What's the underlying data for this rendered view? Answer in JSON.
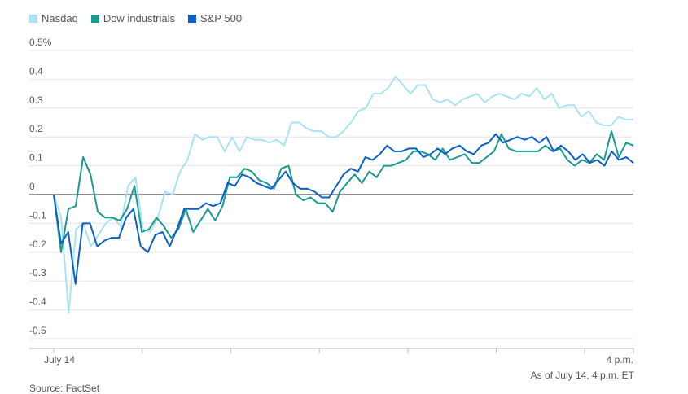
{
  "chart_data": {
    "type": "line",
    "ylim": [
      -0.5,
      0.5
    ],
    "y_ticks": [
      {
        "value": 0.5,
        "label": "0.5%"
      },
      {
        "value": 0.4,
        "label": "0.4"
      },
      {
        "value": 0.3,
        "label": "0.3"
      },
      {
        "value": 0.2,
        "label": "0.2"
      },
      {
        "value": 0.1,
        "label": "0.1"
      },
      {
        "value": 0,
        "label": "0"
      },
      {
        "value": -0.1,
        "label": "-0.1"
      },
      {
        "value": -0.2,
        "label": "-0.2"
      },
      {
        "value": -0.3,
        "label": "-0.3"
      },
      {
        "value": -0.4,
        "label": "-0.4"
      },
      {
        "value": -0.5,
        "label": "-0.5"
      }
    ],
    "x_tick_labels": {
      "start": "July 14",
      "end": "4 p.m."
    },
    "grid": true,
    "legend_position": "top-left",
    "series": [
      {
        "name": "Nasdaq",
        "color": "#a8e2f5",
        "values": [
          0.0,
          -0.08,
          -0.41,
          -0.12,
          -0.1,
          -0.18,
          -0.14,
          -0.1,
          -0.08,
          -0.11,
          0.03,
          0.06,
          -0.12,
          -0.13,
          -0.08,
          0.01,
          0.0,
          0.08,
          0.12,
          0.21,
          0.19,
          0.2,
          0.2,
          0.15,
          0.2,
          0.15,
          0.2,
          0.19,
          0.19,
          0.18,
          0.19,
          0.17,
          0.25,
          0.25,
          0.23,
          0.22,
          0.22,
          0.2,
          0.2,
          0.22,
          0.25,
          0.29,
          0.3,
          0.35,
          0.35,
          0.37,
          0.41,
          0.38,
          0.35,
          0.38,
          0.38,
          0.33,
          0.32,
          0.33,
          0.31,
          0.33,
          0.34,
          0.35,
          0.32,
          0.34,
          0.35,
          0.34,
          0.33,
          0.35,
          0.34,
          0.37,
          0.33,
          0.35,
          0.3,
          0.31,
          0.31,
          0.27,
          0.29,
          0.25,
          0.24,
          0.24,
          0.27,
          0.26,
          0.26
        ]
      },
      {
        "name": "Dow industrials",
        "color": "#1a9a8e",
        "values": [
          0.0,
          -0.2,
          -0.05,
          -0.04,
          0.13,
          0.07,
          -0.06,
          -0.08,
          -0.08,
          -0.09,
          -0.05,
          0.03,
          -0.13,
          -0.12,
          -0.08,
          -0.11,
          -0.15,
          -0.12,
          -0.05,
          -0.13,
          -0.09,
          -0.05,
          -0.09,
          -0.04,
          0.06,
          0.06,
          0.09,
          0.08,
          0.05,
          0.04,
          0.02,
          0.09,
          0.1,
          0.0,
          -0.02,
          -0.01,
          -0.03,
          -0.03,
          -0.06,
          0.01,
          0.04,
          0.07,
          0.04,
          0.08,
          0.06,
          0.1,
          0.1,
          0.11,
          0.12,
          0.15,
          0.15,
          0.14,
          0.12,
          0.16,
          0.12,
          0.13,
          0.14,
          0.11,
          0.11,
          0.13,
          0.15,
          0.21,
          0.16,
          0.15,
          0.15,
          0.15,
          0.15,
          0.17,
          0.15,
          0.16,
          0.12,
          0.1,
          0.12,
          0.11,
          0.14,
          0.12,
          0.22,
          0.13,
          0.18,
          0.17
        ]
      },
      {
        "name": "S&P 500",
        "color": "#0a5fc9",
        "values": [
          0.0,
          -0.17,
          -0.13,
          -0.31,
          -0.1,
          -0.1,
          -0.18,
          -0.16,
          -0.15,
          -0.15,
          -0.08,
          -0.05,
          -0.18,
          -0.2,
          -0.14,
          -0.13,
          -0.18,
          -0.12,
          -0.05,
          -0.05,
          -0.05,
          -0.03,
          -0.04,
          -0.03,
          0.04,
          0.03,
          0.07,
          0.06,
          0.04,
          0.03,
          0.02,
          0.05,
          0.08,
          0.04,
          0.02,
          0.02,
          0.01,
          -0.01,
          -0.01,
          0.03,
          0.07,
          0.09,
          0.08,
          0.13,
          0.12,
          0.14,
          0.17,
          0.15,
          0.15,
          0.16,
          0.16,
          0.13,
          0.14,
          0.16,
          0.14,
          0.16,
          0.17,
          0.15,
          0.14,
          0.17,
          0.18,
          0.21,
          0.18,
          0.19,
          0.2,
          0.19,
          0.2,
          0.18,
          0.2,
          0.15,
          0.17,
          0.15,
          0.12,
          0.14,
          0.11,
          0.12,
          0.1,
          0.15,
          0.12,
          0.13,
          0.11
        ]
      }
    ]
  },
  "footer": {
    "as_of": "As of July 14, 4 p.m. ET",
    "source": "Source: FactSet"
  }
}
